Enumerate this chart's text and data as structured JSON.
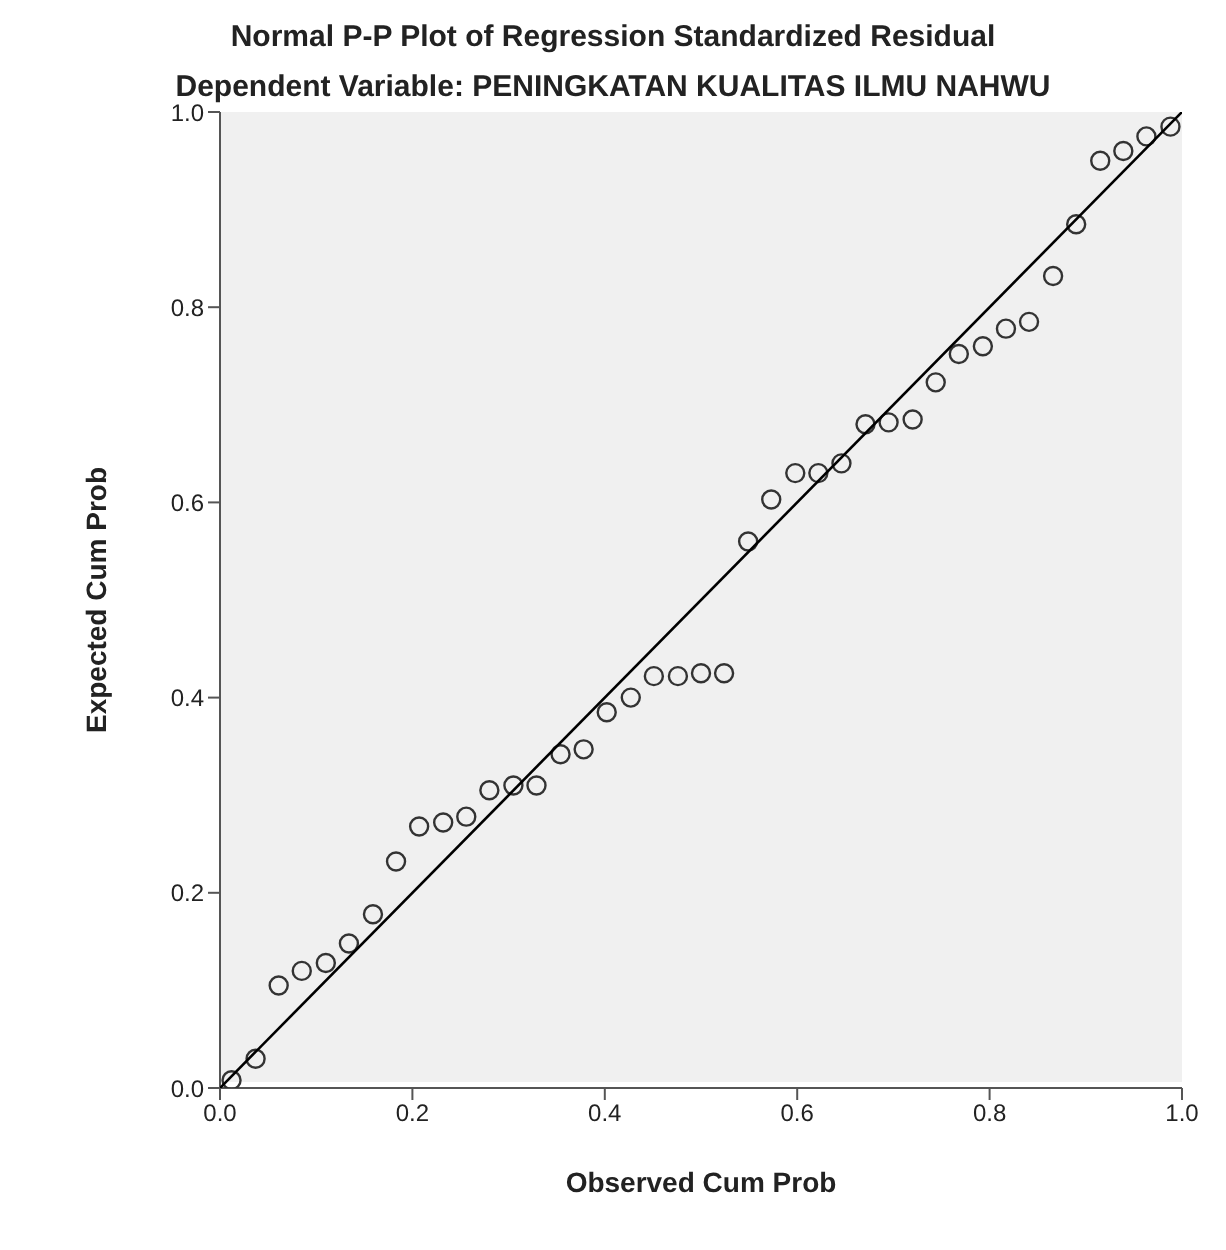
{
  "chart_data": {
    "type": "scatter",
    "title": "Normal P-P Plot of Regression Standardized Residual",
    "subtitle": "Dependent Variable: PENINGKATAN KUALITAS ILMU NAHWU",
    "xlabel": "Observed Cum Prob",
    "ylabel": "Expected Cum Prob",
    "xlim": [
      0,
      1
    ],
    "ylim": [
      0,
      1
    ],
    "xticks": [
      {
        "value": 0,
        "label": "0.0"
      },
      {
        "value": 0.2,
        "label": "0.2"
      },
      {
        "value": 0.4,
        "label": "0.4"
      },
      {
        "value": 0.6,
        "label": "0.6"
      },
      {
        "value": 0.8,
        "label": "0.8"
      },
      {
        "value": 1,
        "label": "1.0"
      }
    ],
    "yticks": [
      {
        "value": 0,
        "label": "0.0"
      },
      {
        "value": 0.2,
        "label": "0.2"
      },
      {
        "value": 0.4,
        "label": "0.4"
      },
      {
        "value": 0.6,
        "label": "0.6"
      },
      {
        "value": 0.8,
        "label": "0.8"
      },
      {
        "value": 1,
        "label": "1.0"
      }
    ],
    "grid": false,
    "marker": "circle",
    "series": [
      {
        "color": "#333333",
        "x": [
          0.012,
          0.037,
          0.061,
          0.085,
          0.11,
          0.134,
          0.159,
          0.183,
          0.207,
          0.232,
          0.256,
          0.28,
          0.305,
          0.329,
          0.354,
          0.378,
          0.402,
          0.427,
          0.451,
          0.476,
          0.5,
          0.524,
          0.549,
          0.573,
          0.598,
          0.622,
          0.646,
          0.671,
          0.695,
          0.72,
          0.744,
          0.768,
          0.793,
          0.817,
          0.841,
          0.866,
          0.89,
          0.915,
          0.939,
          0.963,
          0.988
        ],
        "values": [
          0.008,
          0.03,
          0.105,
          0.12,
          0.128,
          0.148,
          0.178,
          0.232,
          0.268,
          0.272,
          0.278,
          0.305,
          0.31,
          0.31,
          0.342,
          0.347,
          0.385,
          0.4,
          0.422,
          0.422,
          0.425,
          0.425,
          0.56,
          0.603,
          0.63,
          0.63,
          0.64,
          0.68,
          0.682,
          0.685,
          0.723,
          0.752,
          0.76,
          0.778,
          0.785,
          0.832,
          0.885,
          0.95,
          0.96,
          0.975,
          0.985
        ]
      },
      {
        "type": "line",
        "marker": "none",
        "color": "#000000",
        "x": [
          0,
          1
        ],
        "values": [
          0,
          1
        ]
      }
    ]
  }
}
